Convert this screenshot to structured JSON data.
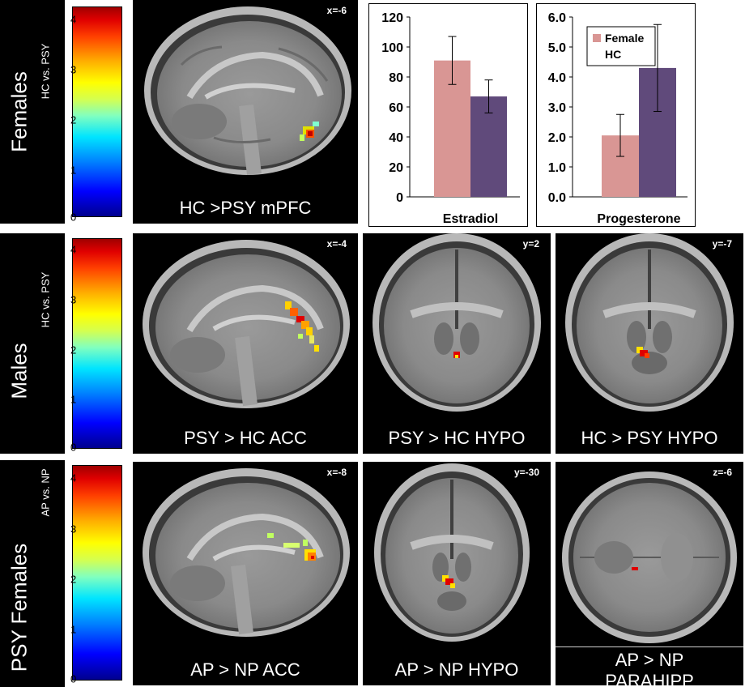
{
  "rows": [
    {
      "main_label": "Females",
      "sub_label": "HC vs. PSY"
    },
    {
      "main_label": "Males",
      "sub_label": "HC vs. PSY"
    },
    {
      "main_label": "PSY Females",
      "sub_label": "AP vs. NP"
    }
  ],
  "colorbar": {
    "ticks": [
      "0",
      "1",
      "2",
      "3",
      "4"
    ]
  },
  "panels": [
    {
      "coord": "x=-6",
      "caption": "HC >PSY mPFC"
    },
    {
      "coord": "x=-4",
      "caption": "PSY > HC ACC"
    },
    {
      "coord": "y=2",
      "caption": "PSY > HC HYPO"
    },
    {
      "coord": "y=-7",
      "caption": "HC > PSY HYPO"
    },
    {
      "coord": "x=-8",
      "caption": "AP > NP ACC"
    },
    {
      "coord": "y=-30",
      "caption": "AP > NP HYPO"
    },
    {
      "coord": "z=-6",
      "caption_line1": "AP > NP",
      "caption_line2": "PARAHIPP"
    }
  ],
  "colors": {
    "female": "#d99694",
    "hc": "#604a7b"
  },
  "chart_data": [
    {
      "type": "bar",
      "categories": [
        "Estradiol"
      ],
      "series": [
        {
          "values": [
            91
          ],
          "error": [
            16
          ],
          "color": "#d99694"
        },
        {
          "values": [
            67
          ],
          "error": [
            11
          ],
          "color": "#604a7b"
        }
      ],
      "xlabel": "Estradiol",
      "ylim": [
        0,
        120
      ],
      "yticks": [
        "0",
        "20",
        "40",
        "60",
        "80",
        "100",
        "120"
      ]
    },
    {
      "type": "bar",
      "categories": [
        "Progesterone"
      ],
      "series": [
        {
          "name": "Female",
          "values": [
            2.05
          ],
          "error": [
            0.7
          ],
          "color": "#d99694"
        },
        {
          "name": "HC",
          "values": [
            4.3
          ],
          "error": [
            1.45
          ],
          "color": "#604a7b"
        }
      ],
      "xlabel": "Progesterone",
      "ylim": [
        0,
        6
      ],
      "yticks": [
        "0.0",
        "1.0",
        "2.0",
        "3.0",
        "4.0",
        "5.0",
        "6.0"
      ],
      "legend": {
        "placement": "top-left",
        "entries": [
          "Female",
          "HC"
        ]
      }
    }
  ]
}
